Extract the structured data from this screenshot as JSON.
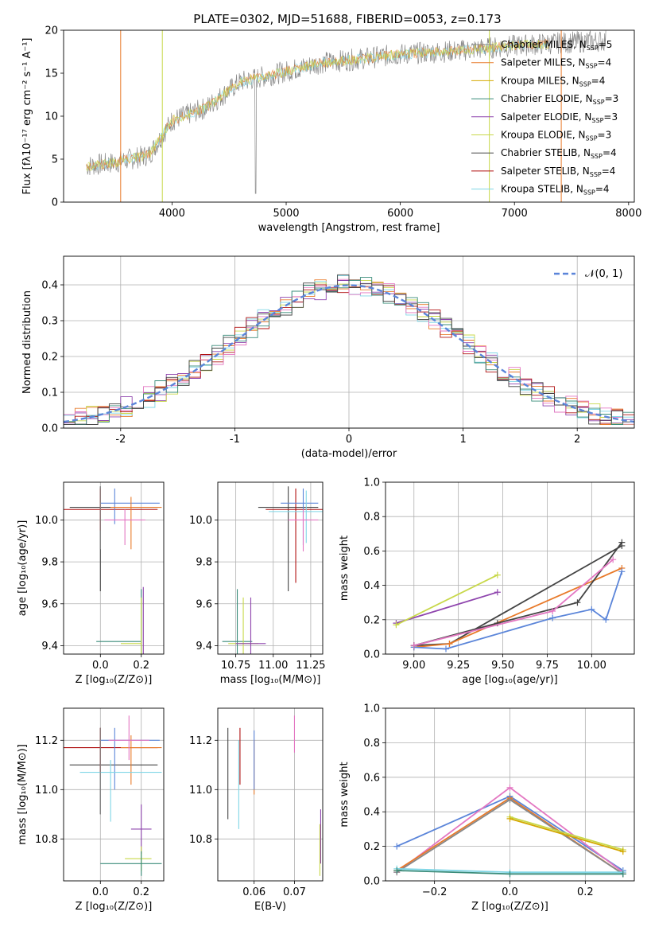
{
  "figure": {
    "title": "PLATE=0302, MJD=51688, FIBERID=0053, z=0.173"
  },
  "colors": {
    "grid": "#b0b0b0",
    "ssp": [
      "#888888",
      "#e87a2a",
      "#d4a800",
      "#3a8c7a",
      "#8e44ad",
      "#c8d84a",
      "#444444",
      "#b01010",
      "#7fd6e6",
      "#5b85d9",
      "#e377c2"
    ]
  },
  "legend_spectrum": [
    {
      "label": "Chabrier MILES, N$_{SSP}$=5",
      "text": "Chabrier MILES, N",
      "sub": "SSP",
      "tail": "=5"
    },
    {
      "label": "Salpeter MILES",
      "text": "Salpeter MILES, N",
      "sub": "SSP",
      "tail": "=4"
    },
    {
      "label": "Kroupa MILES",
      "text": "Kroupa MILES, N",
      "sub": "SSP",
      "tail": "=4"
    },
    {
      "label": "Chabrier ELODIE",
      "text": "Chabrier ELODIE, N",
      "sub": "SSP",
      "tail": "=3"
    },
    {
      "label": "Salpeter ELODIE",
      "text": "Salpeter ELODIE, N",
      "sub": "SSP",
      "tail": "=3"
    },
    {
      "label": "Kroupa ELODIE",
      "text": "Kroupa ELODIE, N",
      "sub": "SSP",
      "tail": "=3"
    },
    {
      "label": "Chabrier STELIB",
      "text": "Chabrier STELIB, N",
      "sub": "SSP",
      "tail": "=4"
    },
    {
      "label": "Salpeter STELIB",
      "text": "Salpeter STELIB, N",
      "sub": "SSP",
      "tail": "=4"
    },
    {
      "label": "Kroupa STELIB",
      "text": "Kroupa STELIB, N",
      "sub": "SSP",
      "tail": "=4"
    }
  ],
  "chart_data": [
    {
      "id": "spectrum",
      "type": "line",
      "xlabel": "wavelength [Angstrom, rest frame]",
      "ylabel": "Flux [fλ10⁻¹⁷ erg cm⁻² s⁻¹ A⁻¹]",
      "xlim": [
        3050,
        8050
      ],
      "ylim": [
        0,
        20
      ],
      "xticks": [
        "4000",
        "5000",
        "6000",
        "7000",
        "8000"
      ],
      "yticks": [
        "0",
        "5",
        "10",
        "15",
        "20"
      ],
      "continuum": {
        "x": [
          3250,
          3500,
          3800,
          4000,
          4300,
          4600,
          5000,
          5300,
          5600,
          6000,
          6500,
          7000,
          7500,
          7800
        ],
        "y": [
          4.2,
          4.6,
          5.5,
          9.5,
          11.0,
          14.0,
          15.2,
          16.2,
          16.6,
          17.2,
          17.6,
          18.2,
          18.6,
          18.8
        ]
      }
    },
    {
      "id": "residuals",
      "type": "line",
      "xlabel": "(data-model)/error",
      "ylabel": "Normed distribution",
      "xlim": [
        -2.5,
        2.5
      ],
      "ylim": [
        0,
        0.48
      ],
      "xticks": [
        "-2",
        "-1",
        "0",
        "1",
        "2"
      ],
      "yticks": [
        "0.0",
        "0.1",
        "0.2",
        "0.3",
        "0.4"
      ],
      "legend": "𝒩(0, 1)"
    },
    {
      "id": "age_vs_Z",
      "type": "scatter",
      "xlabel": "Z [log₁₀(Z/Z⊙)]",
      "ylabel": "age  [log₁₀(age/yr)]",
      "xlim": [
        -0.18,
        0.31
      ],
      "ylim": [
        9.36,
        10.18
      ],
      "xticks": [
        "0.0",
        "0.2"
      ],
      "yticks": [
        "9.4",
        "9.6",
        "9.8",
        "10.0"
      ]
    },
    {
      "id": "age_vs_mass",
      "type": "scatter",
      "xlabel": "mass [log₁₀(M/M⊙)]",
      "ylabel": "",
      "xlim": [
        10.63,
        11.33
      ],
      "ylim": [
        9.36,
        10.18
      ],
      "xticks": [
        "10.75",
        "11.00",
        "11.25"
      ],
      "yticks": [
        "9.4",
        "9.6",
        "9.8",
        "10.0"
      ]
    },
    {
      "id": "massweight_vs_age",
      "type": "line",
      "xlabel": "age  [log₁₀(age/yr)]",
      "ylabel": "mass weight",
      "xlim": [
        8.84,
        10.24
      ],
      "ylim": [
        0,
        1
      ],
      "xticks": [
        "9.00",
        "9.25",
        "9.50",
        "9.75",
        "10.00"
      ],
      "yticks": [
        "0.0",
        "0.2",
        "0.4",
        "0.6",
        "0.8",
        "1.0"
      ],
      "series": [
        {
          "values": [
            [
              8.9,
              0.18
            ],
            [
              9.47,
              0.36
            ]
          ]
        },
        {
          "values": [
            [
              8.9,
              0.17
            ],
            [
              9.47,
              0.46
            ]
          ]
        },
        {
          "values": [
            [
              9.0,
              0.05
            ],
            [
              9.2,
              0.06
            ],
            [
              10.17,
              0.63
            ]
          ]
        },
        {
          "values": [
            [
              9.0,
              0.04
            ],
            [
              9.2,
              0.06
            ],
            [
              10.17,
              0.5
            ]
          ]
        },
        {
          "values": [
            [
              9.0,
              0.04
            ],
            [
              9.18,
              0.03
            ],
            [
              9.78,
              0.21
            ],
            [
              10.0,
              0.26
            ],
            [
              10.08,
              0.2
            ],
            [
              10.17,
              0.48
            ]
          ]
        },
        {
          "values": [
            [
              9.0,
              0.05
            ],
            [
              9.47,
              0.18
            ],
            [
              9.92,
              0.3
            ],
            [
              10.17,
              0.65
            ]
          ]
        },
        {
          "values": [
            [
              9.0,
              0.05
            ],
            [
              9.78,
              0.25
            ],
            [
              10.12,
              0.55
            ]
          ]
        }
      ]
    },
    {
      "id": "mass_vs_Z",
      "type": "scatter",
      "xlabel": "Z [log₁₀(Z/Z⊙)]",
      "ylabel": "mass [log₁₀(M/M⊙)]",
      "xlim": [
        -0.18,
        0.31
      ],
      "ylim": [
        10.63,
        11.33
      ],
      "xticks": [
        "0.0",
        "0.2"
      ],
      "yticks": [
        "10.8",
        "11.0",
        "11.2"
      ]
    },
    {
      "id": "mass_vs_ebv",
      "type": "scatter",
      "xlabel": "E(B-V)",
      "ylabel": "",
      "xlim": [
        0.051,
        0.077
      ],
      "ylim": [
        10.63,
        11.33
      ],
      "xticks": [
        "0.06",
        "0.07"
      ],
      "yticks": [
        "10.8",
        "11.0",
        "11.2"
      ]
    },
    {
      "id": "massweight_vs_Z",
      "type": "line",
      "xlabel": "Z [log₁₀(Z/Z⊙)]",
      "ylabel": "mass weight",
      "xlim": [
        -0.33,
        0.33
      ],
      "ylim": [
        0,
        1
      ],
      "xticks": [
        "−0.2",
        "0.0",
        "0.2"
      ],
      "yticks": [
        "0.0",
        "0.2",
        "0.4",
        "0.6",
        "0.8",
        "1.0"
      ],
      "series": [
        {
          "values": [
            [
              -0.3,
              0.2
            ],
            [
              0.0,
              0.49
            ],
            [
              0.3,
              0.06
            ]
          ]
        },
        {
          "values": [
            [
              -0.3,
              0.05
            ],
            [
              0.0,
              0.54
            ],
            [
              0.3,
              0.05
            ]
          ]
        },
        {
          "values": [
            [
              -0.3,
              0.06
            ],
            [
              0.0,
              0.48
            ],
            [
              0.3,
              0.04
            ]
          ]
        },
        {
          "values": [
            [
              -0.3,
              0.05
            ],
            [
              0.0,
              0.47
            ],
            [
              0.3,
              0.04
            ]
          ]
        },
        {
          "values": [
            [
              -0.3,
              0.07
            ],
            [
              0.0,
              0.05
            ],
            [
              0.3,
              0.05
            ]
          ]
        },
        {
          "values": [
            [
              -0.3,
              0.06
            ],
            [
              0.0,
              0.04
            ],
            [
              0.3,
              0.04
            ]
          ]
        },
        {
          "values": [
            [
              0.0,
              0.37
            ],
            [
              0.3,
              0.18
            ]
          ]
        },
        {
          "values": [
            [
              0.0,
              0.36
            ],
            [
              0.3,
              0.17
            ]
          ]
        }
      ]
    }
  ]
}
